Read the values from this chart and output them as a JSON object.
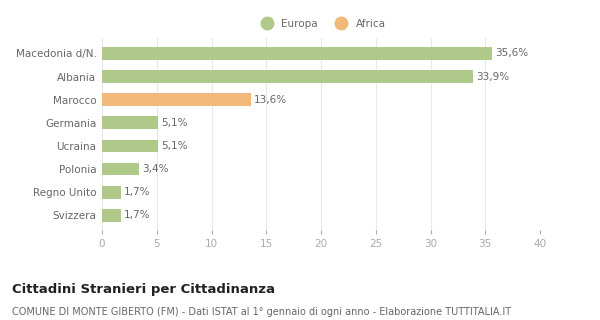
{
  "categories": [
    "Macedonia d/N.",
    "Albania",
    "Marocco",
    "Germania",
    "Ucraina",
    "Polonia",
    "Regno Unito",
    "Svizzera"
  ],
  "values": [
    35.6,
    33.9,
    13.6,
    5.1,
    5.1,
    3.4,
    1.7,
    1.7
  ],
  "labels": [
    "35,6%",
    "33,9%",
    "13,6%",
    "5,1%",
    "5,1%",
    "3,4%",
    "1,7%",
    "1,7%"
  ],
  "colors": [
    "#aec98a",
    "#aec98a",
    "#f0b97a",
    "#aec98a",
    "#aec98a",
    "#aec98a",
    "#aec98a",
    "#aec98a"
  ],
  "europa_color": "#aec98a",
  "africa_color": "#f0b97a",
  "background_color": "#ffffff",
  "grid_color": "#e8e8e8",
  "xlim": [
    0,
    40
  ],
  "xticks": [
    0,
    5,
    10,
    15,
    20,
    25,
    30,
    35,
    40
  ],
  "title": "Cittadini Stranieri per Cittadinanza",
  "subtitle": "COMUNE DI MONTE GIBERTO (FM) - Dati ISTAT al 1° gennaio di ogni anno - Elaborazione TUTTITALIA.IT",
  "legend_europa": "Europa",
  "legend_africa": "Africa",
  "label_fontsize": 7.5,
  "title_fontsize": 9.5,
  "subtitle_fontsize": 7,
  "tick_fontsize": 7.5,
  "bar_height": 0.55
}
